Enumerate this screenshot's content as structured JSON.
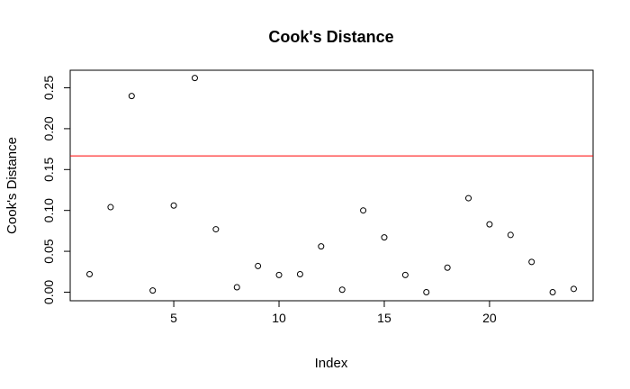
{
  "chart_data": {
    "type": "scatter",
    "title": "Cook's Distance",
    "xlabel": "Index",
    "ylabel": "Cook's Distance",
    "xlim": [
      0.08,
      24.92
    ],
    "ylim": [
      -0.0105,
      0.2715
    ],
    "x_ticks": [
      5,
      10,
      15,
      20
    ],
    "y_ticks": [
      0.0,
      0.05,
      0.1,
      0.15,
      0.2,
      0.25
    ],
    "y_tick_labels": [
      "0.00",
      "0.05",
      "0.10",
      "0.15",
      "0.20",
      "0.25"
    ],
    "grid": false,
    "legend": "none",
    "point_style": "open-circle",
    "point_color": "#000000",
    "reference_line": {
      "y": 0.1667,
      "color": "#ff0000"
    },
    "points": [
      {
        "x": 1,
        "y": 0.022
      },
      {
        "x": 2,
        "y": 0.104
      },
      {
        "x": 3,
        "y": 0.24
      },
      {
        "x": 4,
        "y": 0.002
      },
      {
        "x": 5,
        "y": 0.106
      },
      {
        "x": 6,
        "y": 0.262
      },
      {
        "x": 7,
        "y": 0.077
      },
      {
        "x": 8,
        "y": 0.006
      },
      {
        "x": 9,
        "y": 0.032
      },
      {
        "x": 10,
        "y": 0.021
      },
      {
        "x": 11,
        "y": 0.022
      },
      {
        "x": 12,
        "y": 0.056
      },
      {
        "x": 13,
        "y": 0.003
      },
      {
        "x": 14,
        "y": 0.1
      },
      {
        "x": 15,
        "y": 0.067
      },
      {
        "x": 16,
        "y": 0.021
      },
      {
        "x": 17,
        "y": 0.0
      },
      {
        "x": 18,
        "y": 0.03
      },
      {
        "x": 19,
        "y": 0.115
      },
      {
        "x": 20,
        "y": 0.083
      },
      {
        "x": 21,
        "y": 0.07
      },
      {
        "x": 22,
        "y": 0.037
      },
      {
        "x": 23,
        "y": 0.0
      },
      {
        "x": 24,
        "y": 0.004
      }
    ]
  }
}
